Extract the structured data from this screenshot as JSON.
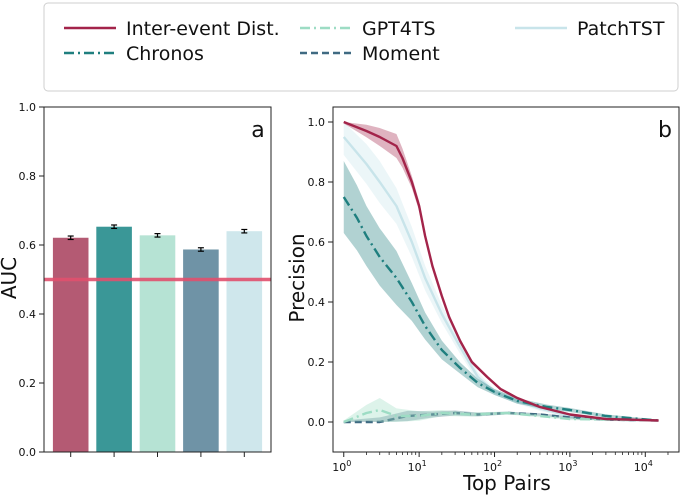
{
  "legend": {
    "entries": [
      {
        "label": "Inter-event Dist.",
        "color": "#a3244a",
        "dash": "solid"
      },
      {
        "label": "GPT4TS",
        "color": "#9ddcc4",
        "dash": "dashdot"
      },
      {
        "label": "PatchTST",
        "color": "#c8e4ea",
        "dash": "solid"
      },
      {
        "label": "Chronos",
        "color": "#1f7f7f",
        "dash": "dashdot"
      },
      {
        "label": "Moment",
        "color": "#3f6a82",
        "dash": "dashed"
      }
    ]
  },
  "chart_data": [
    {
      "type": "bar",
      "panel_label": "a",
      "title": "",
      "xlabel": "",
      "ylabel": "AUC",
      "ylim": [
        0.0,
        1.0
      ],
      "yticks": [
        "0.0",
        "0.2",
        "0.4",
        "0.6",
        "0.8",
        "1.0"
      ],
      "categories": [
        "Inter-event Dist.",
        "Chronos",
        "GPT4TS",
        "Moment",
        "PatchTST"
      ],
      "values": [
        0.621,
        0.653,
        0.628,
        0.587,
        0.64
      ],
      "errors": [
        0.005,
        0.005,
        0.005,
        0.005,
        0.005
      ],
      "colors": [
        "#b45a73",
        "#3a9797",
        "#b6e3d4",
        "#6f93a6",
        "#cfe7ec"
      ],
      "reference_line": {
        "y": 0.5,
        "color": "#e0506e"
      }
    },
    {
      "type": "line",
      "panel_label": "b",
      "xscale": "log",
      "xlabel": "Top Pairs",
      "ylabel": "Precision",
      "ylim": [
        -0.1,
        1.05
      ],
      "yticks": [
        "0.0",
        "0.2",
        "0.4",
        "0.6",
        "0.8",
        "1.0"
      ],
      "xticks": [
        {
          "base": "10",
          "exp": "0"
        },
        {
          "base": "10",
          "exp": "1"
        },
        {
          "base": "10",
          "exp": "2"
        },
        {
          "base": "10",
          "exp": "3"
        },
        {
          "base": "10",
          "exp": "4"
        }
      ],
      "series": [
        {
          "name": "PatchTST",
          "color": "#c8e4ea",
          "dash": "solid",
          "band": true,
          "points": [
            [
              1,
              0.95
            ],
            [
              2,
              0.86
            ],
            [
              3,
              0.8
            ],
            [
              5,
              0.72
            ],
            [
              8,
              0.6
            ],
            [
              12,
              0.48
            ],
            [
              20,
              0.36
            ],
            [
              35,
              0.25
            ],
            [
              60,
              0.15
            ],
            [
              100,
              0.1
            ],
            [
              200,
              0.07
            ],
            [
              400,
              0.045
            ],
            [
              1000,
              0.02
            ],
            [
              3000,
              0.008
            ],
            [
              15000,
              0.005
            ]
          ],
          "spread": [
            [
              1,
              0.06
            ],
            [
              3,
              0.07
            ],
            [
              8,
              0.05
            ],
            [
              20,
              0.03
            ],
            [
              100,
              0.01
            ],
            [
              15000,
              0.003
            ]
          ]
        },
        {
          "name": "Chronos",
          "color": "#1f7f7f",
          "dash": "dashdot",
          "band": true,
          "points": [
            [
              1,
              0.75
            ],
            [
              1.5,
              0.68
            ],
            [
              2,
              0.62
            ],
            [
              3,
              0.55
            ],
            [
              5,
              0.48
            ],
            [
              8,
              0.4
            ],
            [
              12,
              0.32
            ],
            [
              20,
              0.24
            ],
            [
              35,
              0.18
            ],
            [
              60,
              0.13
            ],
            [
              100,
              0.1
            ],
            [
              200,
              0.07
            ],
            [
              500,
              0.05
            ],
            [
              1000,
              0.04
            ],
            [
              3000,
              0.02
            ],
            [
              15000,
              0.005
            ]
          ],
          "spread": [
            [
              1,
              0.12
            ],
            [
              2,
              0.1
            ],
            [
              5,
              0.09
            ],
            [
              10,
              0.05
            ],
            [
              30,
              0.02
            ],
            [
              100,
              0.01
            ],
            [
              15000,
              0.003
            ]
          ]
        },
        {
          "name": "Moment",
          "color": "#3f6a82",
          "dash": "dashed",
          "band": true,
          "points": [
            [
              1,
              0.0
            ],
            [
              3,
              0.0
            ],
            [
              7,
              0.02
            ],
            [
              15,
              0.025
            ],
            [
              30,
              0.03
            ],
            [
              60,
              0.025
            ],
            [
              150,
              0.03
            ],
            [
              400,
              0.025
            ],
            [
              1000,
              0.015
            ],
            [
              3000,
              0.008
            ],
            [
              15000,
              0.005
            ]
          ],
          "spread": [
            [
              1,
              0.005
            ],
            [
              5,
              0.02
            ],
            [
              15,
              0.01
            ],
            [
              100,
              0.005
            ],
            [
              15000,
              0.002
            ]
          ]
        },
        {
          "name": "GPT4TS",
          "color": "#9ddcc4",
          "dash": "dashdot",
          "band": true,
          "points": [
            [
              1,
              0.0
            ],
            [
              2,
              0.03
            ],
            [
              3,
              0.04
            ],
            [
              5,
              0.02
            ],
            [
              10,
              0.02
            ],
            [
              20,
              0.03
            ],
            [
              50,
              0.025
            ],
            [
              150,
              0.03
            ],
            [
              400,
              0.02
            ],
            [
              1000,
              0.01
            ],
            [
              15000,
              0.005
            ]
          ],
          "spread": [
            [
              1,
              0.005
            ],
            [
              3,
              0.04
            ],
            [
              6,
              0.02
            ],
            [
              20,
              0.01
            ],
            [
              100,
              0.005
            ],
            [
              15000,
              0.002
            ]
          ]
        },
        {
          "name": "Inter-event Dist.",
          "color": "#a3244a",
          "dash": "solid",
          "band": true,
          "points": [
            [
              1,
              1.0
            ],
            [
              2,
              0.97
            ],
            [
              3,
              0.95
            ],
            [
              5,
              0.92
            ],
            [
              6,
              0.88
            ],
            [
              8,
              0.8
            ],
            [
              10,
              0.72
            ],
            [
              12,
              0.62
            ],
            [
              15,
              0.52
            ],
            [
              20,
              0.42
            ],
            [
              25,
              0.35
            ],
            [
              35,
              0.27
            ],
            [
              50,
              0.2
            ],
            [
              80,
              0.15
            ],
            [
              120,
              0.11
            ],
            [
              200,
              0.08
            ],
            [
              400,
              0.05
            ],
            [
              1000,
              0.025
            ],
            [
              3000,
              0.01
            ],
            [
              15000,
              0.005
            ]
          ],
          "spread": [
            [
              1,
              0.005
            ],
            [
              3,
              0.03
            ],
            [
              5,
              0.04
            ],
            [
              8,
              0.02
            ],
            [
              15,
              0.01
            ],
            [
              100,
              0.005
            ],
            [
              15000,
              0.002
            ]
          ]
        }
      ]
    }
  ]
}
